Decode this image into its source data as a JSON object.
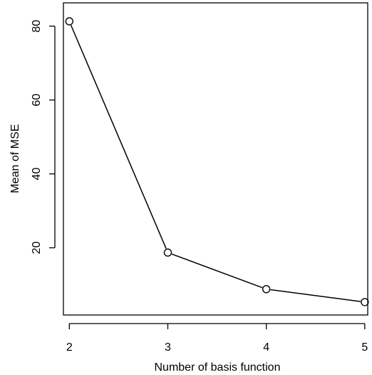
{
  "chart_data": {
    "type": "line",
    "title": "",
    "xlabel": "Number of basis function",
    "ylabel": "Mean of MSE",
    "x": [
      2,
      3,
      4,
      5
    ],
    "y": [
      81.3,
      18.7,
      8.8,
      5.3
    ],
    "xticks": [
      "2",
      "3",
      "4",
      "5"
    ],
    "yticks": [
      "20",
      "40",
      "60",
      "80"
    ],
    "xlim": [
      1.94,
      5.03
    ],
    "ylim": [
      1.8,
      86.3
    ],
    "marker": "open-circle",
    "line_color": "#000000",
    "grid": false,
    "legend": "none"
  }
}
